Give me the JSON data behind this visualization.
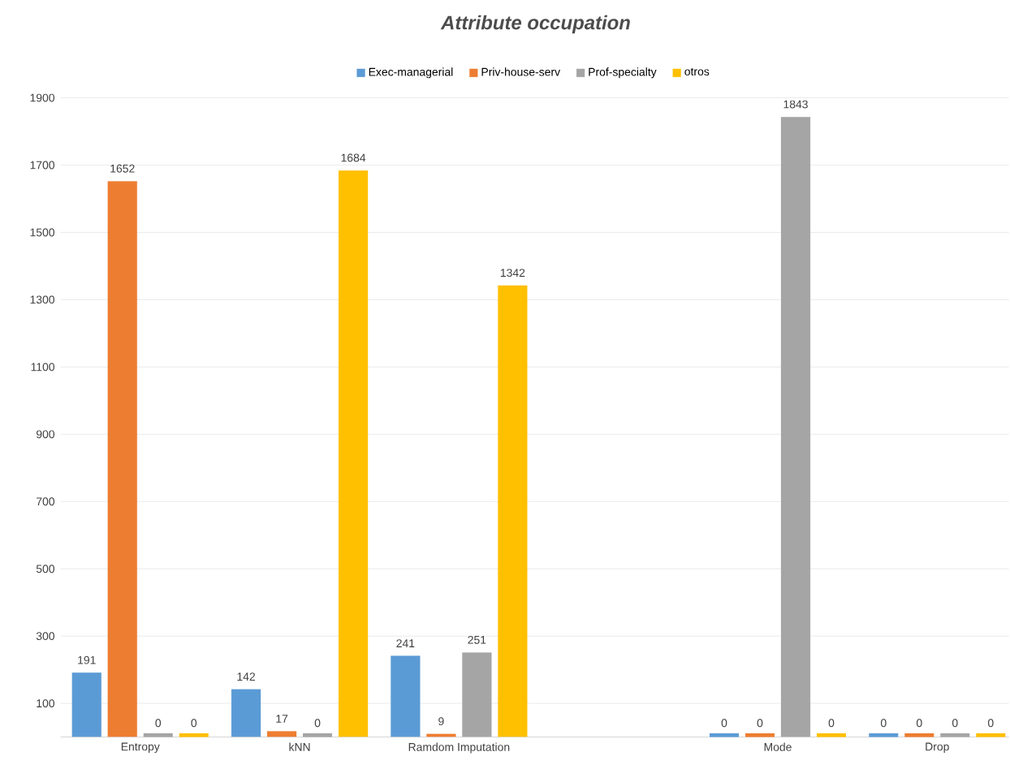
{
  "chart_data": {
    "type": "bar",
    "title": "Attribute  occupation",
    "categories": [
      "Entropy",
      "kNN",
      "Ramdom Imputation",
      null,
      "Mode",
      "Drop"
    ],
    "series": [
      {
        "name": "Exec-managerial",
        "color": "#5b9bd5",
        "values": [
          191,
          142,
          241,
          null,
          0,
          0
        ]
      },
      {
        "name": "Priv-house-serv",
        "color": "#ed7d31",
        "values": [
          1652,
          17,
          9,
          null,
          0,
          0
        ]
      },
      {
        "name": "Prof-specialty",
        "color": "#a5a5a5",
        "values": [
          0,
          0,
          251,
          null,
          1843,
          0
        ]
      },
      {
        "name": "otros",
        "color": "#ffc000",
        "values": [
          0,
          1684,
          1342,
          null,
          0,
          0
        ]
      }
    ],
    "ylim": [
      0,
      1900
    ],
    "yticks": [
      100,
      300,
      500,
      700,
      900,
      1100,
      1300,
      1500,
      1700,
      1900
    ],
    "grid": "y",
    "legend": "top",
    "data_labels": true
  }
}
